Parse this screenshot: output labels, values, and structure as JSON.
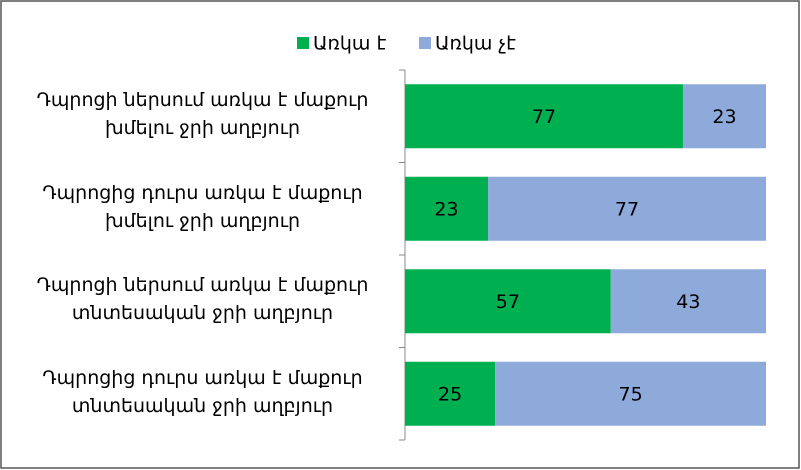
{
  "chart_data": {
    "type": "stacked_bar_horizontal",
    "categories": [
      "Դպրոցի ներսում առկա է մաքուր\nխմելու ջրի աղբյուր",
      "Դպրոցից դուրս առկա է մաքուր\nխմելու ջրի աղբյուր",
      "Դպրոցի ներսում առկա է մաքուր\nտնտեսական ջրի աղբյուր",
      "Դպրոցից դուրս առկա է մաքուր\nտնտեսական ջրի աղբյուր"
    ],
    "series": [
      {
        "name": "Առկա է",
        "color": "#00b050",
        "values": [
          77,
          23,
          57,
          25
        ]
      },
      {
        "name": "Առկա չէ",
        "color": "#8eaadb",
        "values": [
          23,
          77,
          43,
          75
        ]
      }
    ],
    "xlim": [
      0,
      100
    ],
    "legend": "top"
  }
}
